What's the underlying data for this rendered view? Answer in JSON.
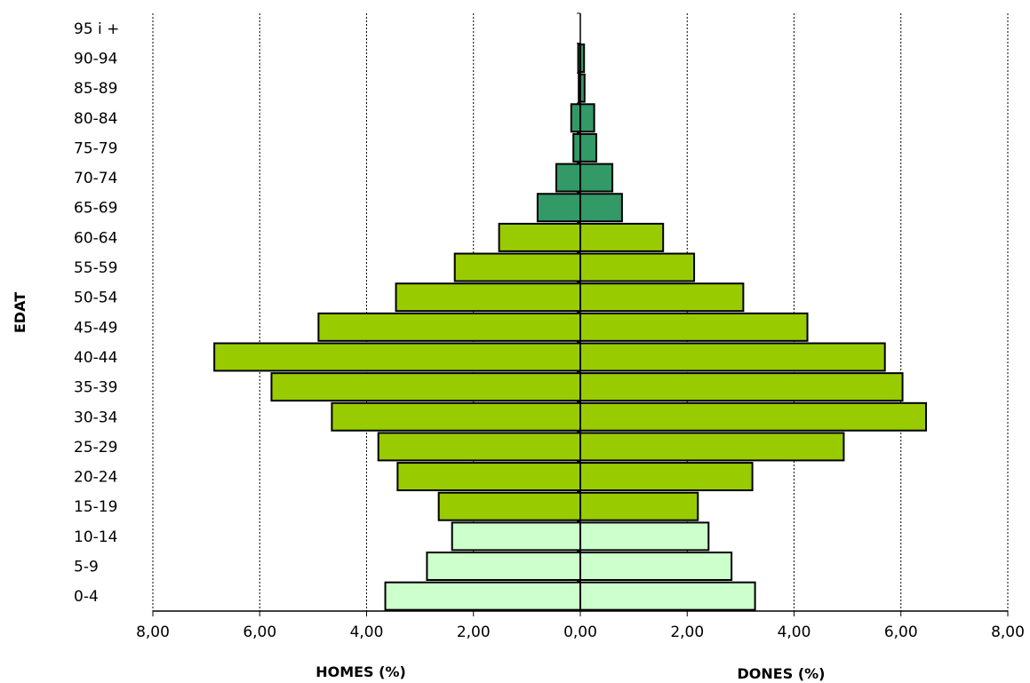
{
  "chart_data": {
    "type": "bar",
    "orientation": "horizontal",
    "title": "",
    "ylabel": "EDAT",
    "xlabel_left": "HOMES (%)",
    "xlabel_right": "DONES (%)",
    "xlim": [
      -8,
      8
    ],
    "xticks": [
      -8,
      -6,
      -4,
      -2,
      0,
      2,
      4,
      6,
      8
    ],
    "xtick_labels": [
      "8,00",
      "6,00",
      "4,00",
      "2,00",
      "0,00",
      "2,00",
      "4,00",
      "6,00",
      "8,00"
    ],
    "grid": "vertical-dotted",
    "categories": [
      "0-4",
      "5-9",
      "10-14",
      "15-19",
      "20-24",
      "25-29",
      "30-34",
      "35-39",
      "40-44",
      "45-49",
      "50-54",
      "55-59",
      "60-64",
      "65-69",
      "70-74",
      "75-79",
      "80-84",
      "85-89",
      "90-94",
      "95 i +"
    ],
    "series": [
      {
        "name": "HOMES (%)",
        "side": "left",
        "values": [
          3.65,
          2.87,
          2.4,
          2.65,
          3.42,
          3.78,
          4.65,
          5.78,
          6.85,
          4.9,
          3.45,
          2.35,
          1.52,
          0.8,
          0.45,
          0.13,
          0.17,
          0.03,
          0.04,
          0.0
        ]
      },
      {
        "name": "DONES (%)",
        "side": "right",
        "values": [
          3.27,
          2.83,
          2.4,
          2.2,
          3.22,
          4.93,
          6.47,
          6.03,
          5.7,
          4.25,
          3.05,
          2.13,
          1.55,
          0.78,
          0.6,
          0.3,
          0.26,
          0.08,
          0.07,
          0.0
        ]
      }
    ],
    "group_colors": {
      "young": "#ccffcc",
      "adult": "#99cc00",
      "elderly": "#339966"
    },
    "group_index": {
      "young": [
        0,
        2
      ],
      "adult": [
        3,
        12
      ],
      "elderly": [
        13,
        19
      ]
    }
  }
}
